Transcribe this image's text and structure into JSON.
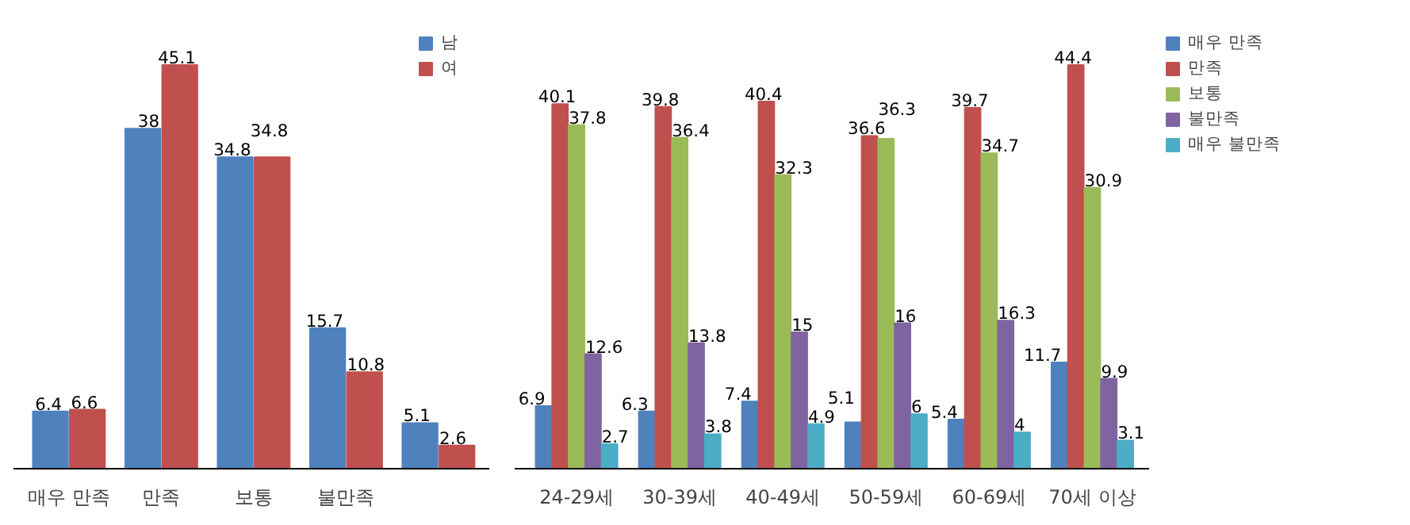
{
  "chart_data": [
    {
      "type": "bar",
      "categories": [
        "매우 만족",
        "만족",
        "보통",
        "불만족",
        null
      ],
      "data_labels": true,
      "grid": false,
      "legend": "top right",
      "series": [
        {
          "name": "남",
          "color": "#4f81bd",
          "values": [
            6.4,
            38,
            34.8,
            15.7,
            5.1
          ]
        },
        {
          "name": "여",
          "color": "#c0504d",
          "values": [
            6.6,
            45.1,
            34.8,
            10.8,
            2.6
          ]
        }
      ]
    },
    {
      "type": "bar",
      "categories": [
        "24-29세",
        "30-39세",
        "40-49세",
        "50-59세",
        "60-69세",
        "70세 이상"
      ],
      "data_labels": true,
      "grid": false,
      "legend": "right",
      "series": [
        {
          "name": "매우 만족",
          "color": "#4f81bd",
          "values": [
            6.9,
            6.3,
            7.4,
            5.1,
            5.4,
            11.7
          ]
        },
        {
          "name": "만족",
          "color": "#c0504d",
          "values": [
            40.1,
            39.8,
            40.4,
            36.6,
            39.7,
            44.4
          ]
        },
        {
          "name": "보통",
          "color": "#9bbb59",
          "values": [
            37.8,
            36.4,
            32.3,
            36.3,
            34.7,
            30.9
          ]
        },
        {
          "name": "불만족",
          "color": "#8064a2",
          "values": [
            12.6,
            13.8,
            15,
            16,
            16.3,
            9.9
          ]
        },
        {
          "name": "매우 불만족",
          "color": "#4bacc6",
          "values": [
            2.7,
            3.8,
            4.9,
            6,
            4,
            3.1
          ]
        }
      ]
    }
  ]
}
